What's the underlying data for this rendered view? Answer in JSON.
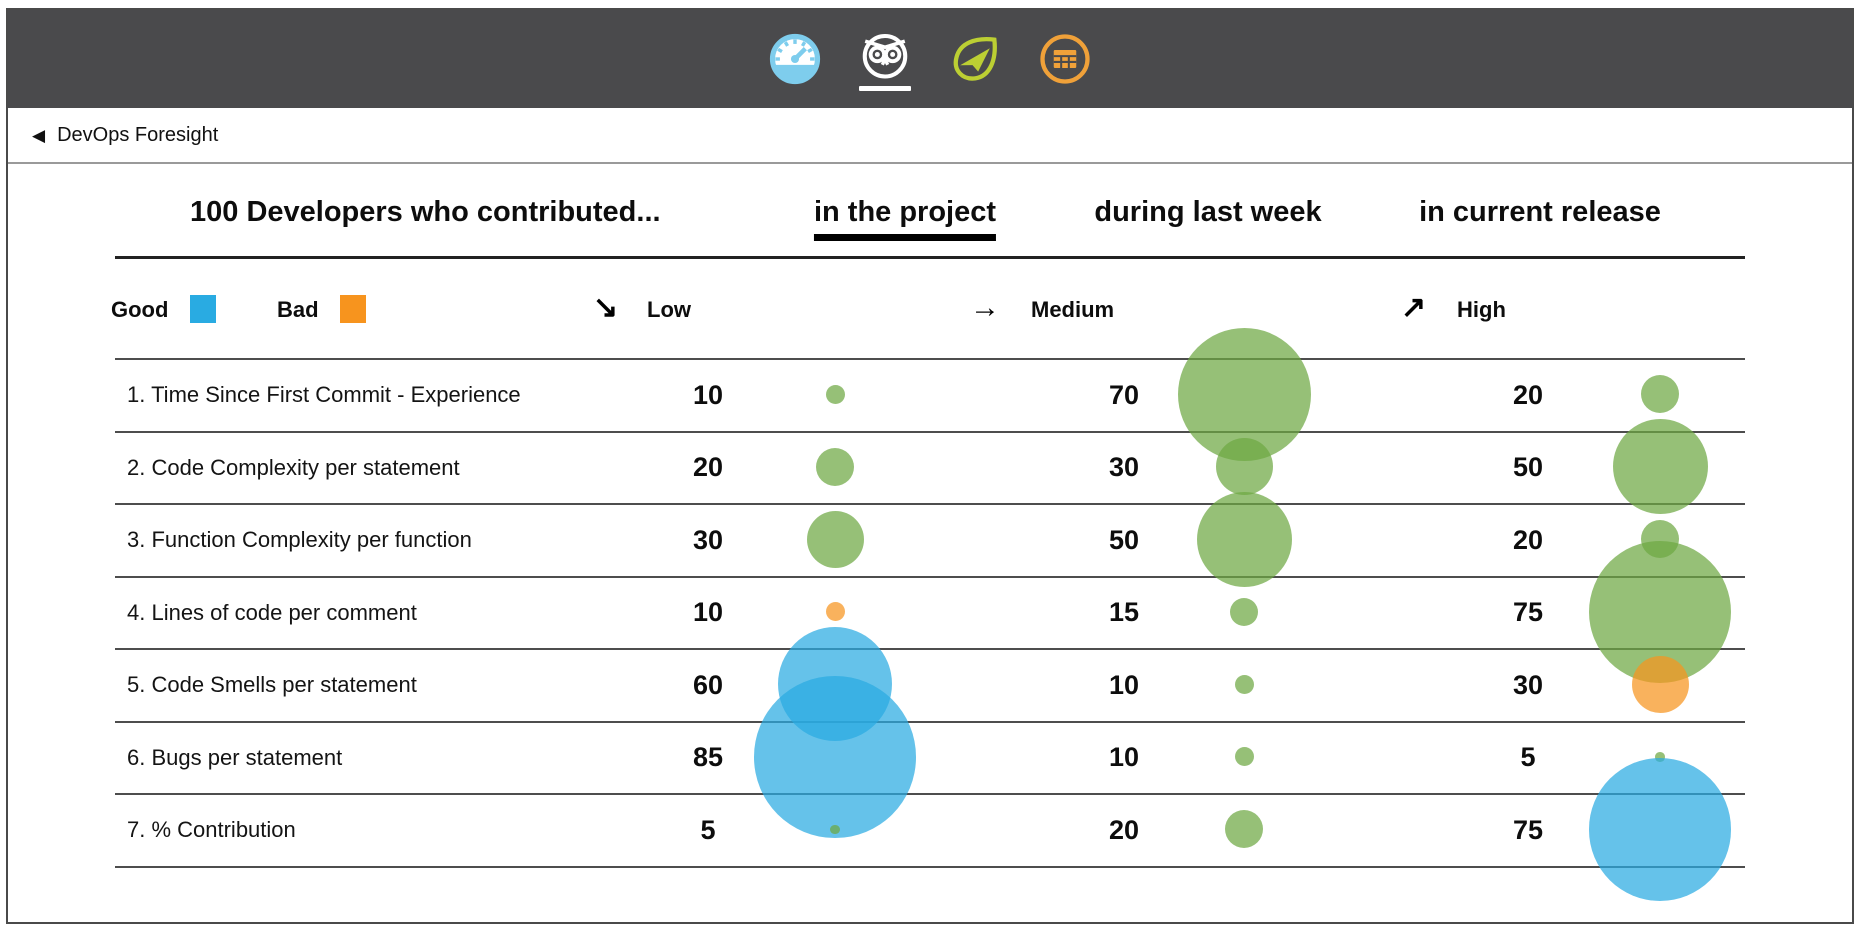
{
  "topbar": {
    "icons": [
      {
        "name": "speedometer",
        "color": "#7ECDED",
        "active": false
      },
      {
        "name": "owl",
        "color": "#FFFFFF",
        "active": true
      },
      {
        "name": "leaf-plane",
        "color": "#BCCF33",
        "active": false
      },
      {
        "name": "table",
        "color": "#F0A139",
        "active": false
      }
    ],
    "bg_color": "#4A4A4C"
  },
  "breadcrumb": {
    "back_icon": "◀",
    "label": "DevOps Foresight"
  },
  "header": {
    "title": "100 Developers who contributed...",
    "tabs": [
      {
        "label": "in the project",
        "active": true
      },
      {
        "label": "during last week",
        "active": false
      },
      {
        "label": "in current release",
        "active": false
      }
    ]
  },
  "legend": {
    "good_label": "Good",
    "good_color": "#29ABE2",
    "bad_label": "Bad",
    "bad_color": "#F7941E",
    "levels": [
      {
        "icon": "↘",
        "label": "Low"
      },
      {
        "icon": "→",
        "label": "Medium"
      },
      {
        "icon": "↗",
        "label": "High"
      }
    ]
  },
  "metrics": {
    "columns": [
      "in the project",
      "during last week",
      "in current release"
    ],
    "colors": {
      "green": "#6DA842",
      "blue": "#29ABE2",
      "orange": "#F7941E"
    },
    "bubble_alpha": 0.72,
    "rows": [
      {
        "label": "1. Time Since First Commit - Experience",
        "values": [
          {
            "v": 10,
            "c": "green"
          },
          {
            "v": 70,
            "c": "green"
          },
          {
            "v": 20,
            "c": "green"
          }
        ]
      },
      {
        "label": "2. Code Complexity per statement",
        "values": [
          {
            "v": 20,
            "c": "green"
          },
          {
            "v": 30,
            "c": "green"
          },
          {
            "v": 50,
            "c": "green"
          }
        ]
      },
      {
        "label": "3. Function Complexity per function",
        "values": [
          {
            "v": 30,
            "c": "green"
          },
          {
            "v": 50,
            "c": "green"
          },
          {
            "v": 20,
            "c": "green"
          }
        ]
      },
      {
        "label": "4. Lines of code per comment",
        "values": [
          {
            "v": 10,
            "c": "orange"
          },
          {
            "v": 15,
            "c": "green"
          },
          {
            "v": 75,
            "c": "green"
          }
        ]
      },
      {
        "label": "5. Code Smells per statement",
        "values": [
          {
            "v": 60,
            "c": "blue"
          },
          {
            "v": 10,
            "c": "green"
          },
          {
            "v": 30,
            "c": "orange"
          }
        ]
      },
      {
        "label": "6. Bugs per statement",
        "values": [
          {
            "v": 85,
            "c": "blue"
          },
          {
            "v": 10,
            "c": "green"
          },
          {
            "v": 5,
            "c": "green"
          }
        ]
      },
      {
        "label": "7. % Contribution",
        "values": [
          {
            "v": 5,
            "c": "green"
          },
          {
            "v": 20,
            "c": "green"
          },
          {
            "v": 75,
            "c": "blue"
          }
        ]
      }
    ]
  }
}
